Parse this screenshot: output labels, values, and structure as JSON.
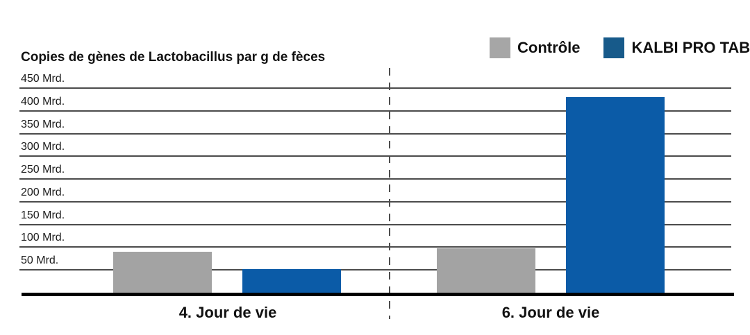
{
  "title": "Copies de gènes de Lactobacillus par g de fèces",
  "legend": {
    "items": [
      {
        "label": "Contrôle",
        "color": "#a6a6a6"
      },
      {
        "label": "KALBI PRO TAB",
        "color": "#175a8a"
      }
    ]
  },
  "chart_data": {
    "type": "bar",
    "title": "Copies de gènes de Lactobacillus par g de fèces",
    "unit": "Mrd.",
    "categories": [
      "4. Jour de vie",
      "6. Jour de vie"
    ],
    "series": [
      {
        "name": "Contrôle",
        "color": "#a3a3a3",
        "values": [
          90,
          97
        ]
      },
      {
        "name": "KALBI PRO TAB",
        "color": "#0b5ba7",
        "values": [
          52,
          430
        ]
      }
    ],
    "y_ticks": [
      {
        "value": 450,
        "label": "450 Mrd."
      },
      {
        "value": 400,
        "label": "400 Mrd."
      },
      {
        "value": 350,
        "label": "350 Mrd."
      },
      {
        "value": 300,
        "label": "300 Mrd."
      },
      {
        "value": 250,
        "label": "250 Mrd."
      },
      {
        "value": 200,
        "label": "200 Mrd."
      },
      {
        "value": 150,
        "label": "150 Mrd."
      },
      {
        "value": 100,
        "label": "100 Mrd."
      },
      {
        "value": 50,
        "label": "50 Mrd."
      }
    ],
    "ylim": [
      0,
      450
    ],
    "grid": true,
    "legend_position": "top-right",
    "group_divider": "dashed-vertical-line"
  }
}
